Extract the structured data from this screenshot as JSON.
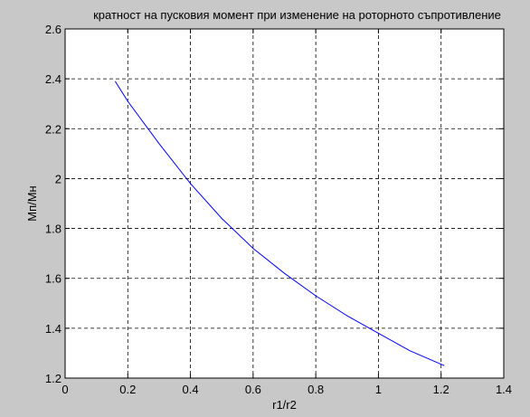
{
  "figure": {
    "background_color": "#c8c8c8",
    "axes_background_color": "#ffffff",
    "line_color": "#0000ff"
  },
  "chart_data": {
    "type": "line",
    "title": "кратност на пусковия момент при изменение на роторното съпротивление",
    "xlabel": "r1/r2",
    "ylabel": "Mп/Mн",
    "xlim": [
      0,
      1.4
    ],
    "ylim": [
      1.2,
      2.6
    ],
    "xticks": [
      0,
      0.2,
      0.4,
      0.6,
      0.8,
      1,
      1.2,
      1.4
    ],
    "xtick_labels": [
      "0",
      "0.2",
      "0.4",
      "0.6",
      "0.8",
      "1",
      "1.2",
      "1.4"
    ],
    "yticks": [
      1.2,
      1.4,
      1.6,
      1.8,
      2,
      2.2,
      2.4,
      2.6
    ],
    "ytick_labels": [
      "1.2",
      "1.4",
      "1.6",
      "1.8",
      "2",
      "2.2",
      "2.4",
      "2.6"
    ],
    "grid": true,
    "grid_style": "dashed",
    "series": [
      {
        "x": [
          0.16,
          0.2,
          0.3,
          0.4,
          0.5,
          0.6,
          0.7,
          0.8,
          0.9,
          1.0,
          1.1,
          1.21
        ],
        "y": [
          2.39,
          2.31,
          2.14,
          1.98,
          1.84,
          1.72,
          1.62,
          1.53,
          1.45,
          1.38,
          1.31,
          1.25
        ]
      }
    ]
  }
}
